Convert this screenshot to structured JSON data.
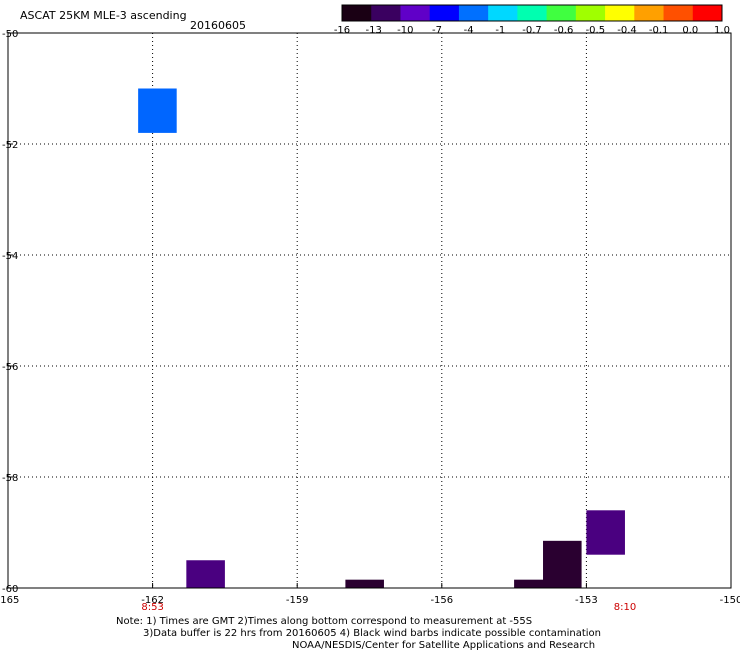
{
  "chart_data": {
    "type": "heatmap",
    "title": "ASCAT 25KM MLE-3 ascending",
    "date": "20160605",
    "xlabel": "",
    "ylabel": "",
    "xlim": [
      -165,
      -150
    ],
    "ylim": [
      -60,
      -50
    ],
    "grid": true,
    "x_ticks": [
      -165,
      -162,
      -159,
      -156,
      -153,
      -150
    ],
    "x_tick_labels": [
      "-165",
      "-162",
      "-159",
      "-156",
      "-153",
      "-150"
    ],
    "y_ticks": [
      -50,
      -52,
      -54,
      -56,
      -58,
      -60
    ],
    "y_tick_labels": [
      "-50",
      "-52",
      "-54",
      "-56",
      "-58",
      "-60"
    ],
    "colorbar": {
      "labels": [
        "-16",
        "-13",
        "-10",
        "-7",
        "-4",
        "-1",
        "-0.7",
        "-0.6",
        "-0.5",
        "-0.4",
        "-0.1",
        "0.0",
        "1.0"
      ],
      "colors": [
        "#1a0014",
        "#3a0060",
        "#6000c8",
        "#0000ff",
        "#0070ff",
        "#00d8ff",
        "#00ffb0",
        "#40ff40",
        "#a0ff00",
        "#ffff00",
        "#ffa000",
        "#ff5000",
        "#ff0000"
      ]
    },
    "cells": [
      {
        "lon_min": -162.3,
        "lon_max": -161.5,
        "lat_min": -51.8,
        "lat_max": -51.0,
        "color": "#0066ff"
      },
      {
        "lon_min": -161.3,
        "lon_max": -160.5,
        "lat_min": -60.0,
        "lat_max": -59.5,
        "color": "#4a0080"
      },
      {
        "lon_min": -158.0,
        "lon_max": -157.2,
        "lat_min": -60.0,
        "lat_max": -59.85,
        "color": "#2a0030"
      },
      {
        "lon_min": -154.5,
        "lon_max": -153.7,
        "lat_min": -60.0,
        "lat_max": -59.85,
        "color": "#2a0030"
      },
      {
        "lon_min": -153.9,
        "lon_max": -153.1,
        "lat_min": -60.0,
        "lat_max": -59.15,
        "color": "#2a0030"
      },
      {
        "lon_min": -153.0,
        "lon_max": -152.2,
        "lat_min": -59.4,
        "lat_max": -58.6,
        "color": "#4a0080"
      }
    ],
    "time_labels": [
      {
        "lon": -162,
        "text": "8:53"
      },
      {
        "lon": -152.2,
        "text": "8:10"
      }
    ],
    "notes": [
      "Note: 1) Times are GMT 2)Times along bottom correspond to measurement at -55S",
      "3)Data buffer is 22 hrs from 20160605 4) Black wind barbs indicate possible contamination",
      "NOAA/NESDIS/Center for Satellite Applications and Research"
    ]
  }
}
